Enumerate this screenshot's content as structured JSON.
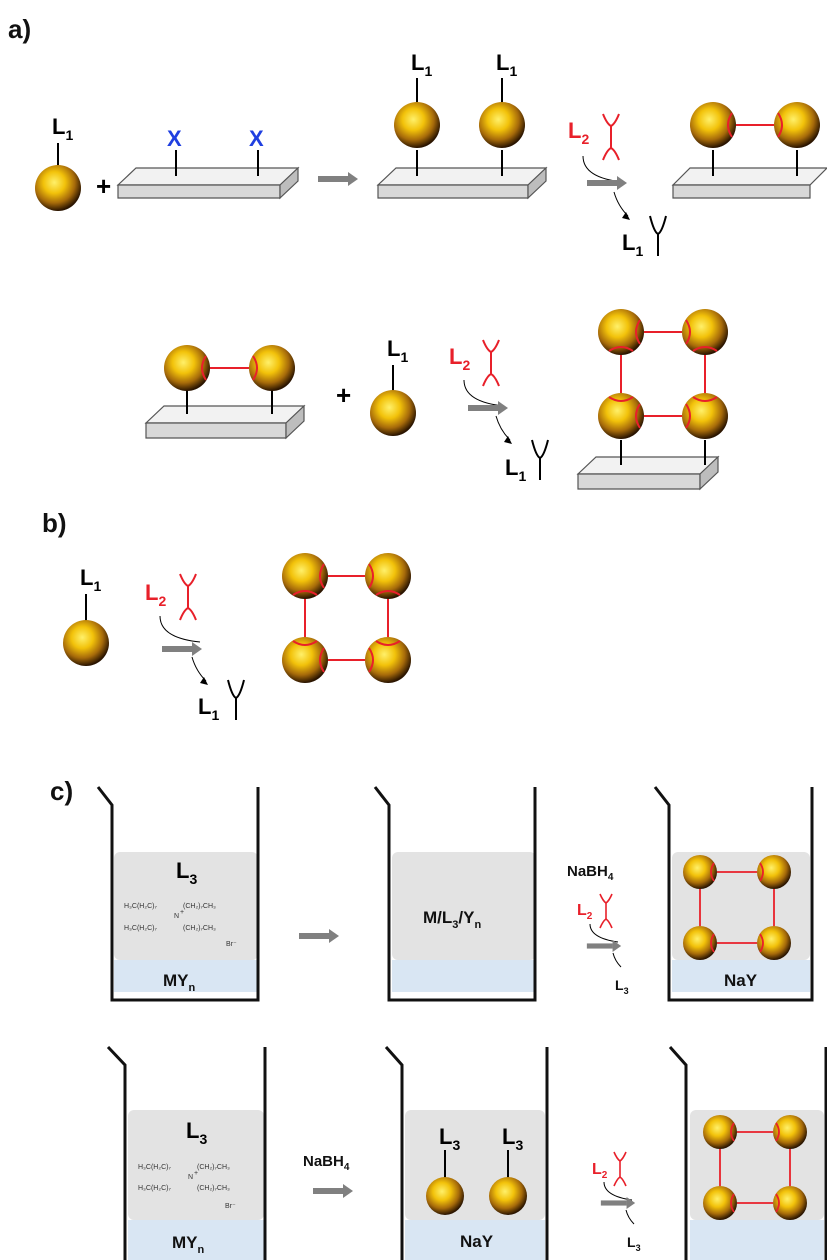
{
  "section_labels": {
    "a": "a)",
    "b": "b)",
    "c": "c)"
  },
  "ligands": {
    "L1": "L",
    "L1_sub": "1",
    "L2": "L",
    "L2_sub": "2",
    "L3": "L",
    "L3_sub": "3",
    "X": "X",
    "plus": "+"
  },
  "reagents": {
    "nabh4": "NaBH",
    "nabh4_sub": "4",
    "my": "MY",
    "my_sub": "n",
    "naY": "NaY",
    "complex_m": "M/L",
    "complex_sub3": "3",
    "complex_y": "/Y",
    "complex_subn": "n"
  },
  "surfactant": {
    "line1": "H₃C(H₂C)₇",
    "line1b": "(CH₂)₇CH₃",
    "line2": "H₃C(H₂C)₇",
    "line2b": "(CH₂)₇CH₃",
    "center": "N",
    "charge": "+",
    "anion": "Br⁻"
  },
  "colors": {
    "ligand2": "#e8202a",
    "x_group": "#1f3fe0",
    "liquid": "#e3e3e3",
    "aqueous": "#d9e6f3",
    "arrow": "#7a7a7a"
  }
}
